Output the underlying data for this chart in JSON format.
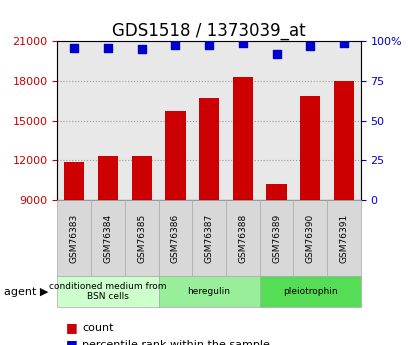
{
  "title": "GDS1518 / 1373039_at",
  "samples": [
    "GSM76383",
    "GSM76384",
    "GSM76385",
    "GSM76386",
    "GSM76387",
    "GSM76388",
    "GSM76389",
    "GSM76390",
    "GSM76391"
  ],
  "counts": [
    11900,
    12300,
    12300,
    15700,
    16700,
    18300,
    10200,
    16900,
    18000
  ],
  "percentiles": [
    96,
    96,
    95,
    98,
    98,
    99,
    92,
    97,
    99
  ],
  "ylim_left": [
    9000,
    21000
  ],
  "ylim_right": [
    0,
    100
  ],
  "yticks_left": [
    9000,
    12000,
    15000,
    18000,
    21000
  ],
  "yticks_right": [
    0,
    25,
    50,
    75,
    100
  ],
  "bar_color": "#cc0000",
  "dot_color": "#0000cc",
  "groups": [
    {
      "label": "conditioned medium from\nBSN cells",
      "start": 0,
      "end": 3,
      "color": "#ccffcc"
    },
    {
      "label": "heregulin",
      "start": 3,
      "end": 6,
      "color": "#99ee99"
    },
    {
      "label": "pleiotrophin",
      "start": 6,
      "end": 9,
      "color": "#55dd55"
    }
  ],
  "agent_label": "agent",
  "legend_count_label": "count",
  "legend_pct_label": "percentile rank within the sample",
  "bar_width": 0.6,
  "dot_size": 40,
  "grid_color": "#999999",
  "background_color": "#e8e8e8",
  "title_fontsize": 12,
  "axis_fontsize": 9,
  "tick_fontsize": 8
}
